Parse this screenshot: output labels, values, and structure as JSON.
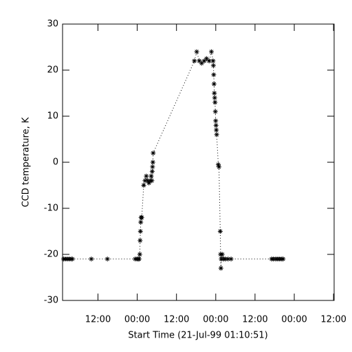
{
  "chart_data": {
    "type": "line",
    "x_label": "Start Time (21-Jul-99 01:10:51)",
    "y_label": "CCD temperature, K",
    "xlim": [
      0,
      83
    ],
    "ylim": [
      -30,
      30
    ],
    "xticks": [
      {
        "value": 10.82,
        "label": "12:00"
      },
      {
        "value": 22.82,
        "label": "00:00"
      },
      {
        "value": 34.82,
        "label": "12:00"
      },
      {
        "value": 46.82,
        "label": "00:00"
      },
      {
        "value": 58.82,
        "label": "12:00"
      },
      {
        "value": 70.82,
        "label": "00:00"
      },
      {
        "value": 82.82,
        "label": "12:00"
      }
    ],
    "yticks": [
      -30,
      -20,
      -10,
      0,
      10,
      20,
      30
    ],
    "color": "#000000",
    "marker": "asterisk",
    "line_style": "dotted",
    "x": [
      0.3,
      0.8,
      1.4,
      2,
      2.6,
      3,
      8.8,
      13.7,
      22.2,
      22.7,
      23.1,
      23.4,
      23.6,
      23.7,
      23.8,
      23.9,
      24.0,
      24.2,
      24.8,
      25.2,
      25.6,
      26,
      26.4,
      26.8,
      27.1,
      27.3,
      27.4,
      27.5,
      27.6,
      27.7,
      40.3,
      41,
      41.8,
      42.5,
      43.3,
      44,
      44.8,
      45.5,
      46,
      46.1,
      46.2,
      46.3,
      46.4,
      46.5,
      46.6,
      46.7,
      46.8,
      46.9,
      47.0,
      47.1,
      47.6,
      47.8,
      48.2,
      48.3,
      48.4,
      48.5,
      48.8,
      49.2,
      49.8,
      50.6,
      51.5,
      63.9,
      64.5,
      65.2,
      65.8,
      66.4,
      67,
      67.4
    ],
    "values": [
      -21,
      -21,
      -21,
      -21,
      -21,
      -21,
      -21,
      -21,
      -21,
      -21,
      -21,
      -21,
      -20,
      -17,
      -15,
      -13,
      -12,
      -12,
      -5,
      -4,
      -3,
      -4,
      -4.5,
      -4,
      -3,
      -4,
      -2,
      -1,
      0,
      2,
      22,
      24,
      22,
      21.5,
      22,
      22.5,
      22,
      24,
      22,
      21,
      19,
      17,
      15,
      14,
      13,
      11,
      9,
      8,
      7,
      6,
      -0.5,
      -1,
      -15,
      -20,
      -23,
      -21,
      -20,
      -21,
      -21,
      -21,
      -21,
      -21,
      -21,
      -21,
      -21,
      -21,
      -21,
      -21
    ]
  }
}
